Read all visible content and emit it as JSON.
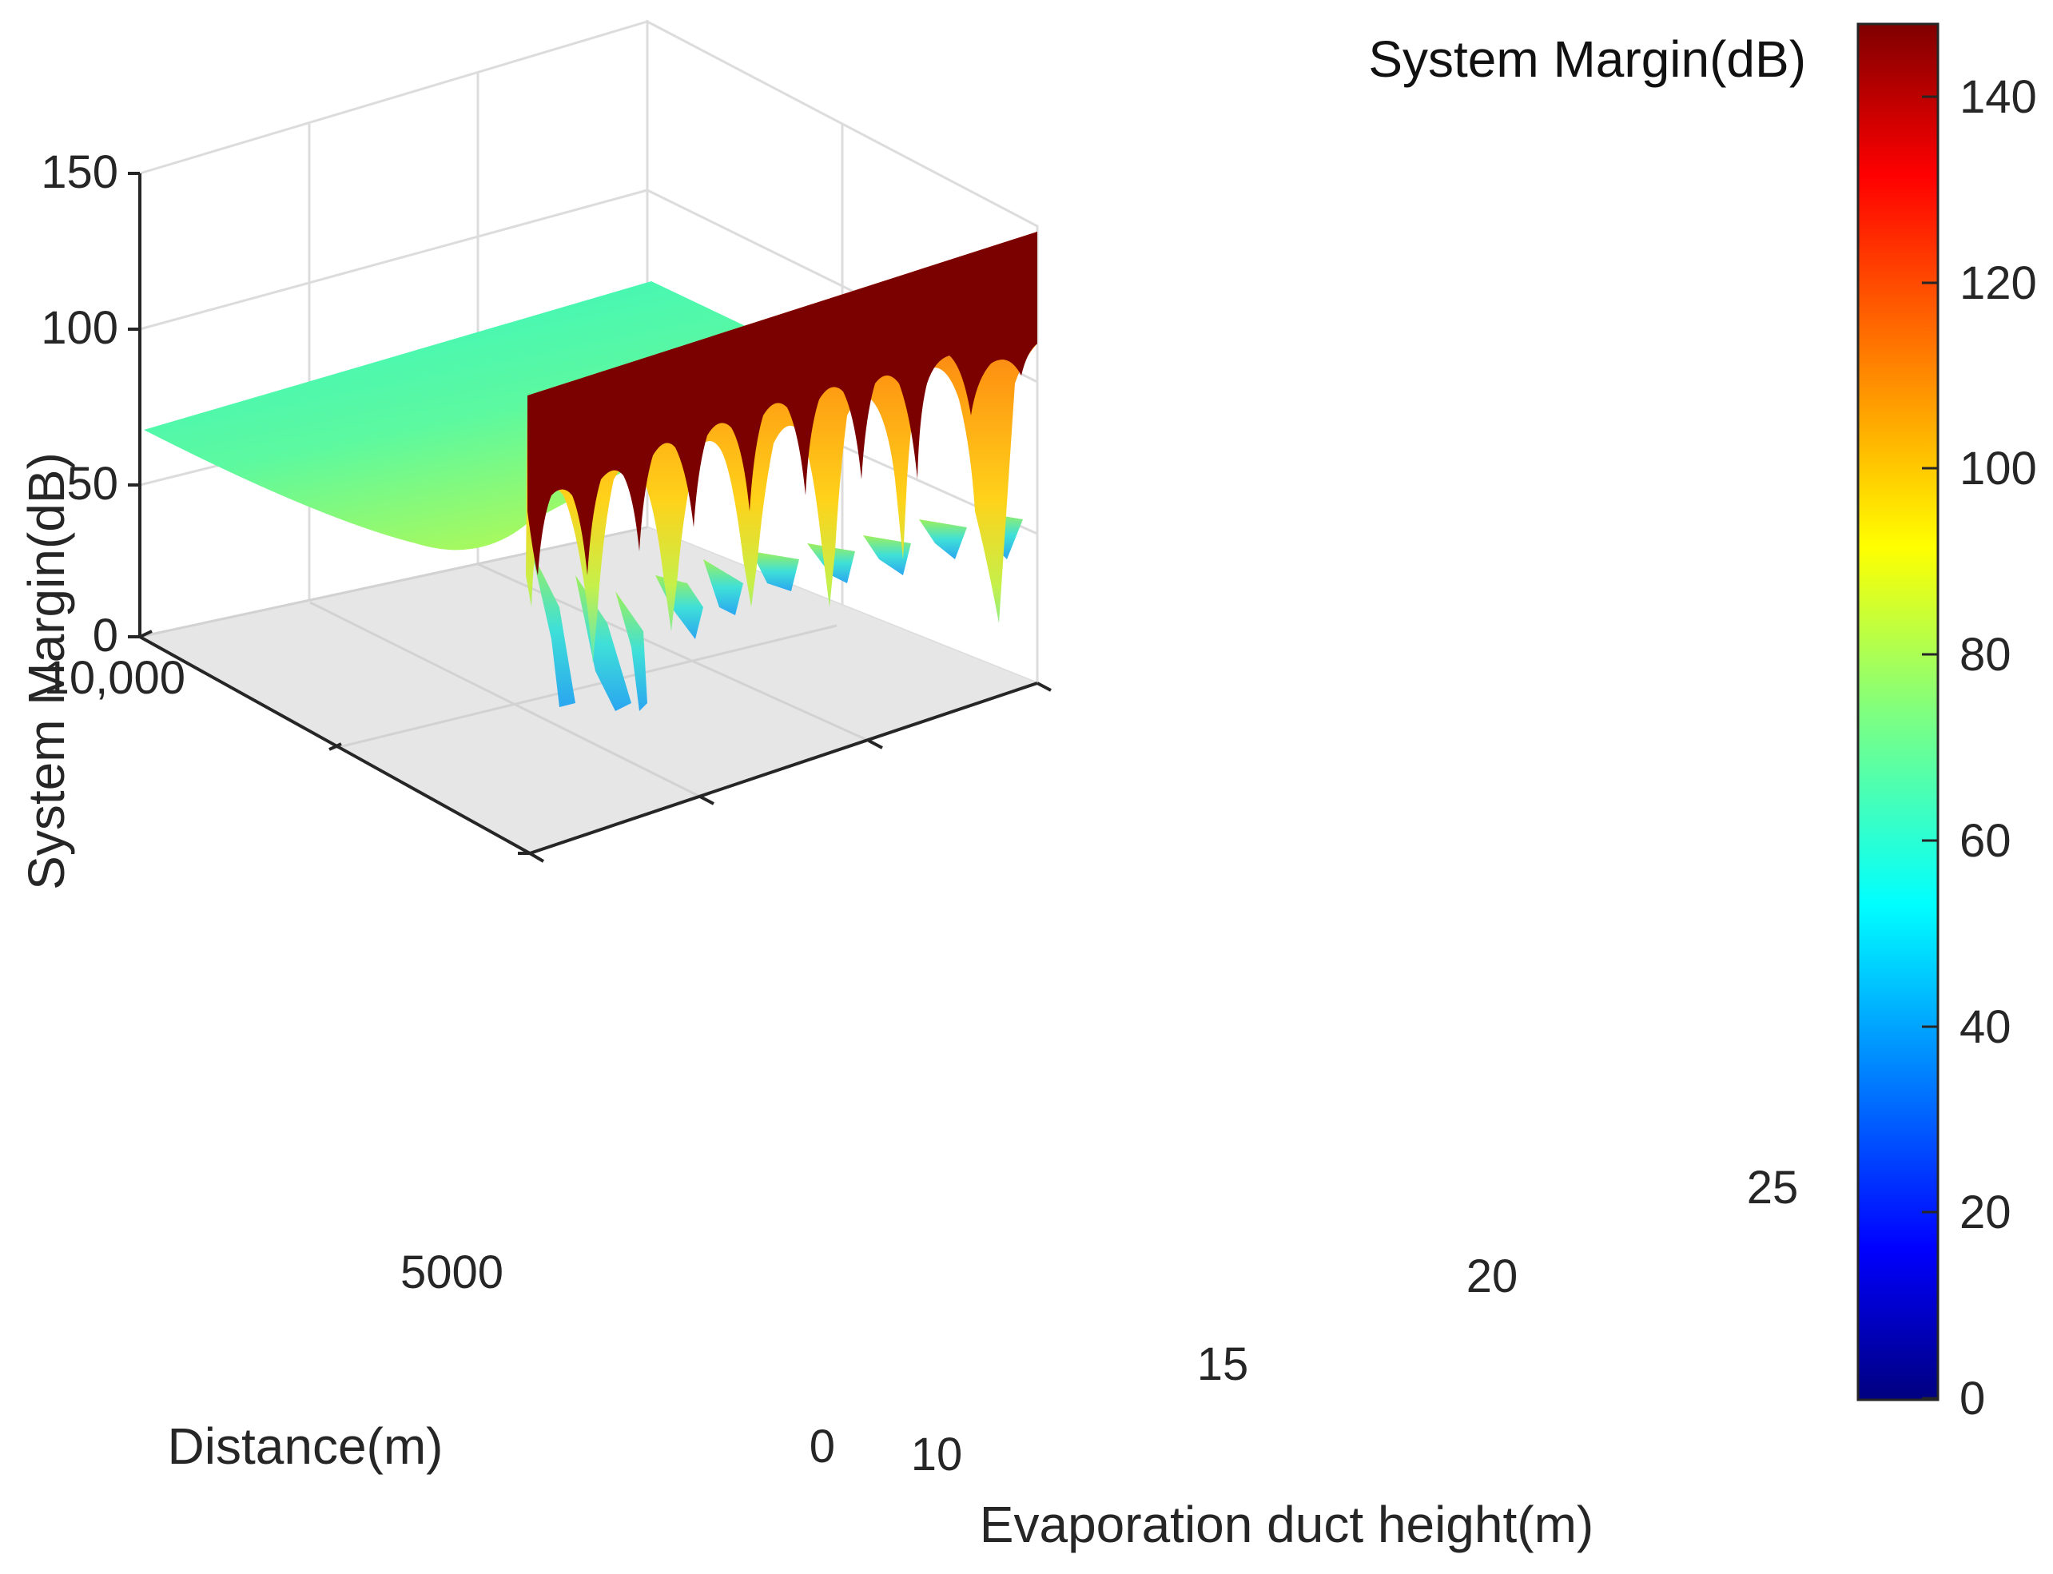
{
  "chart_data": {
    "type": "surface3d",
    "title": "",
    "colormap": "jet",
    "x_axis": {
      "label": "Evaporation duct height(m)",
      "range": [
        10,
        25
      ],
      "ticks": [
        10,
        15,
        20,
        25
      ],
      "tick_labels": [
        "10",
        "15",
        "20",
        "25"
      ]
    },
    "y_axis": {
      "label": "Distance(m)",
      "range": [
        0,
        10000
      ],
      "ticks": [
        0,
        5000,
        10000
      ],
      "tick_labels": [
        "0",
        "5000",
        "10,000"
      ]
    },
    "z_axis": {
      "label": "System Margin(dB)",
      "range": [
        0,
        150
      ],
      "ticks": [
        0,
        50,
        100,
        150
      ],
      "tick_labels": [
        "0",
        "50",
        "100",
        "150"
      ]
    },
    "colorbar": {
      "title": "System Margin(dB)",
      "range": [
        0,
        148
      ],
      "ticks": [
        0,
        20,
        40,
        60,
        80,
        100,
        120,
        140
      ],
      "tick_labels": [
        "0",
        "20",
        "40",
        "60",
        "80",
        "100",
        "120",
        "140"
      ]
    },
    "surface_summary": {
      "plateau_margin_db": 66,
      "near_field_max_margin_db": 148,
      "lobe_count_along_near_edge": 9,
      "min_margin_db_near_field": 25
    },
    "grid": true
  },
  "colors": {
    "floor": "#e6e6e6",
    "grid": "#dcdcdc",
    "axis": "#262626",
    "wall": "#7b0000"
  }
}
